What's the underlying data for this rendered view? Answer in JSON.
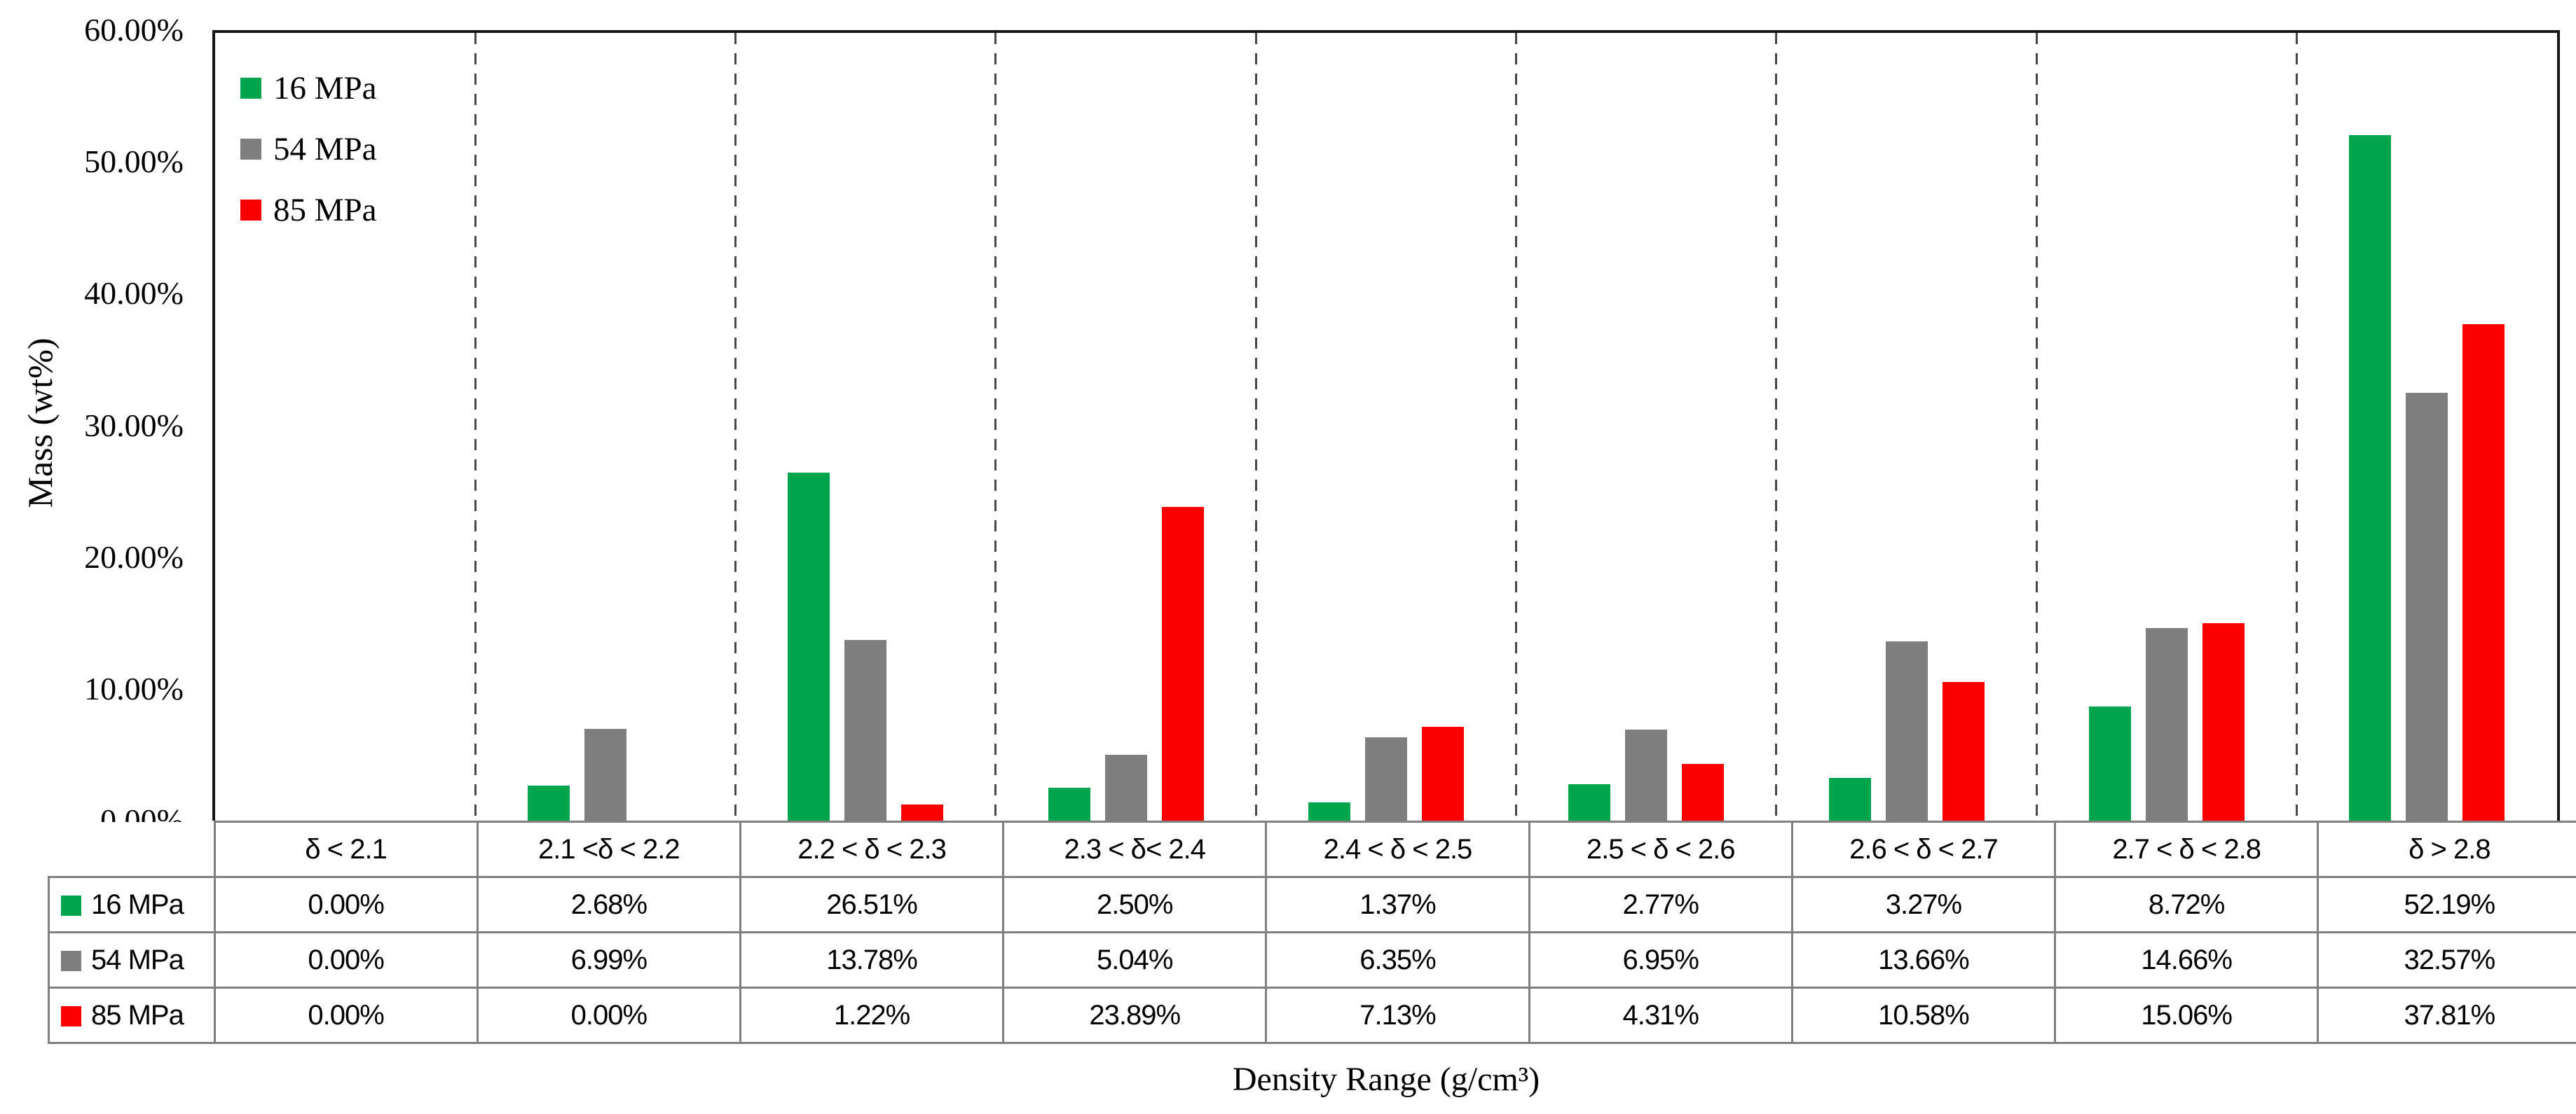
{
  "chart_data": {
    "type": "bar",
    "title": "",
    "xlabel": "Density Range (g/cm³)",
    "ylabel": "Mass (wt%)",
    "ylim": [
      0,
      60
    ],
    "ytick_labels": [
      "0.00%",
      "10.00%",
      "20.00%",
      "30.00%",
      "40.00%",
      "50.00%",
      "60.00%"
    ],
    "grid": "vertical dashed separators between categories",
    "legend_position": "top-left inside plot",
    "categories": [
      "δ < 2.1",
      "2.1 <δ < 2.2",
      "2.2 < δ < 2.3",
      "2.3 < δ< 2.4",
      "2.4 < δ < 2.5",
      "2.5 < δ < 2.6",
      "2.6 < δ < 2.7",
      "2.7 < δ < 2.8",
      "δ > 2.8"
    ],
    "series": [
      {
        "name": "16 MPa",
        "color": "#00A64E",
        "values": [
          0.0,
          2.68,
          26.51,
          2.5,
          1.37,
          2.77,
          3.27,
          8.72,
          52.19
        ]
      },
      {
        "name": "54 MPa",
        "color": "#7F7F7F",
        "values": [
          0.0,
          6.99,
          13.78,
          5.04,
          6.35,
          6.95,
          13.66,
          14.66,
          32.57
        ]
      },
      {
        "name": "85 MPa",
        "color": "#FB0000",
        "values": [
          0.0,
          0.0,
          1.22,
          23.89,
          7.13,
          4.31,
          10.58,
          15.06,
          37.81
        ]
      }
    ]
  },
  "data_table": {
    "row_labels": [
      "16 MPa",
      "54 MPa",
      "85 MPa"
    ],
    "rows": [
      [
        "0.00%",
        "2.68%",
        "26.51%",
        "2.50%",
        "1.37%",
        "2.77%",
        "3.27%",
        "8.72%",
        "52.19%"
      ],
      [
        "0.00%",
        "6.99%",
        "13.78%",
        "5.04%",
        "6.35%",
        "6.95%",
        "13.66%",
        "14.66%",
        "32.57%"
      ],
      [
        "0.00%",
        "0.00%",
        "1.22%",
        "23.89%",
        "7.13%",
        "4.31%",
        "10.58%",
        "15.06%",
        "37.81%"
      ]
    ]
  },
  "style_colors": {
    "axis_border": "#161616",
    "table_border": "#7F7F7F",
    "separator_dash": "#474747"
  }
}
